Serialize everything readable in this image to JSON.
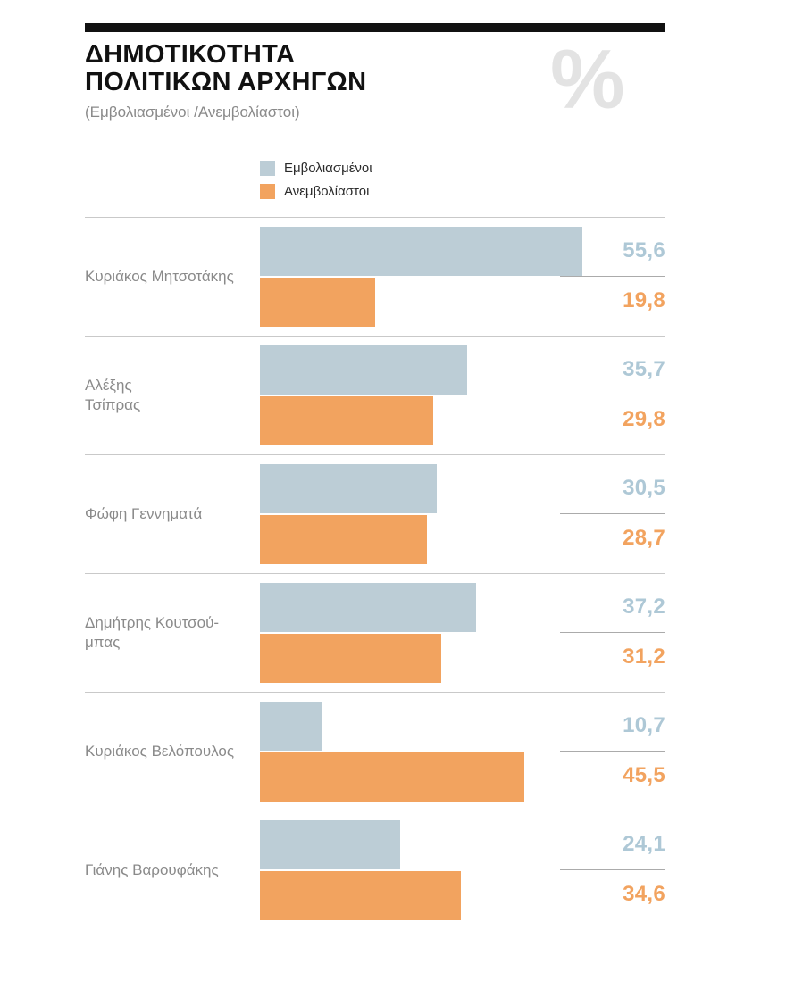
{
  "header": {
    "title_line1": "ΔΗΜΟΤΙΚΟΤΗΤΑ",
    "title_line2": "ΠΟΛΙΤΙΚΩΝ ΑΡΧΗΓΩΝ",
    "subtitle": "(Εμβολιασμένοι /Ανεμβολίαστοι)",
    "percent_symbol": "%",
    "accent_bar_color": "#111111"
  },
  "legend": {
    "items": [
      {
        "label": "Εμβολιασμένοι",
        "color": "#bccdd6"
      },
      {
        "label": "Ανεμβολίαστοι",
        "color": "#f2a35f"
      }
    ]
  },
  "chart_data": {
    "type": "bar",
    "orientation": "horizontal",
    "title": "ΔΗΜΟΤΙΚΟΤΗΤΑ ΠΟΛΙΤΙΚΩΝ ΑΡΧΗΓΩΝ",
    "subtitle": "(Εμβολιασμένοι /Ανεμβολίαστοι)",
    "unit": "%",
    "xlim": [
      0,
      60
    ],
    "grid": false,
    "legend_position": "top",
    "series_names": [
      "Εμβολιασμένοι",
      "Ανεμβολίαστοι"
    ],
    "series_colors": [
      "#bccdd6",
      "#f2a35f"
    ],
    "categories": [
      "Κυριάκος Μητσοτάκης",
      "Αλέξης Τσίπρας",
      "Φώφη Γεννηματά",
      "Δημήτρης Κουτσούμπας",
      "Κυριάκος Βελόπουλος",
      "Γιάνης Βαρουφάκης"
    ],
    "rows": [
      {
        "name": "Κυριάκος Μητσοτάκης",
        "vaccinated": 55.6,
        "vaccinated_label": "55,6",
        "unvaccinated": 19.8,
        "unvaccinated_label": "19,8"
      },
      {
        "name": "Αλέξης\nΤσίπρας",
        "vaccinated": 35.7,
        "vaccinated_label": "35,7",
        "unvaccinated": 29.8,
        "unvaccinated_label": "29,8"
      },
      {
        "name": "Φώφη Γεννηματά",
        "vaccinated": 30.5,
        "vaccinated_label": "30,5",
        "unvaccinated": 28.7,
        "unvaccinated_label": "28,7"
      },
      {
        "name": "Δημήτρης Κουτσού-\nμπας",
        "vaccinated": 37.2,
        "vaccinated_label": "37,2",
        "unvaccinated": 31.2,
        "unvaccinated_label": "31,2"
      },
      {
        "name": "Κυριάκος Βελόπουλος",
        "vaccinated": 10.7,
        "vaccinated_label": "10,7",
        "unvaccinated": 45.5,
        "unvaccinated_label": "45,5"
      },
      {
        "name": "Γιάνης Βαρουφάκης",
        "vaccinated": 24.1,
        "vaccinated_label": "24,1",
        "unvaccinated": 34.6,
        "unvaccinated_label": "34,6"
      }
    ]
  }
}
